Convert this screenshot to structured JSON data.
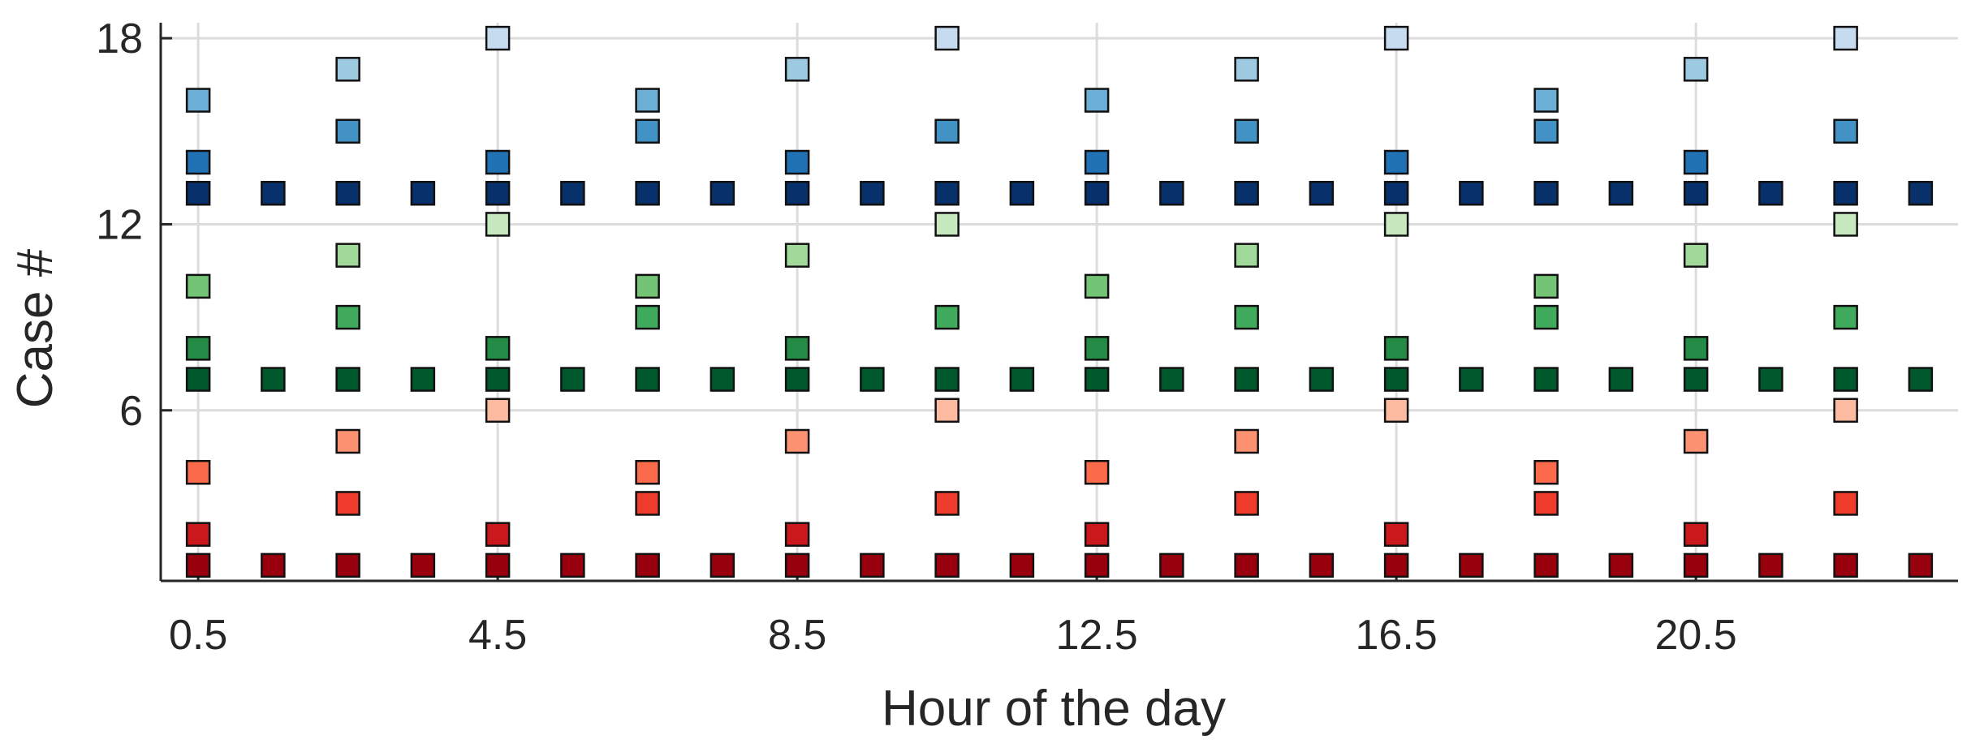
{
  "chart_data": {
    "type": "scatter",
    "title": "",
    "xlabel": "Hour of the day",
    "ylabel": "Case #",
    "xlim": [
      0,
      24
    ],
    "ylim": [
      0.5,
      18.5
    ],
    "x_ticks": [
      0.5,
      4.5,
      8.5,
      12.5,
      16.5,
      20.5
    ],
    "x_tick_labels": [
      "0.5",
      "4.5",
      "8.5",
      "12.5",
      "16.5",
      "20.5"
    ],
    "y_ticks": [
      6,
      12,
      18
    ],
    "y_tick_labels": [
      "6",
      "12",
      "18"
    ],
    "grid": true,
    "marker": "square",
    "case_colors": {
      "1": "#99000d",
      "2": "#cb181d",
      "3": "#ef3b2c",
      "4": "#fb6a4a",
      "5": "#fc9272",
      "6": "#fcbba1",
      "7": "#00592c",
      "8": "#238b45",
      "9": "#41ab5d",
      "10": "#74c476",
      "11": "#a1d99b",
      "12": "#c7e9c0",
      "13": "#08306b",
      "14": "#2171b5",
      "15": "#4292c6",
      "16": "#6baed6",
      "17": "#9ecae1",
      "18": "#c6dbef"
    },
    "series": [
      {
        "case": 1,
        "x": [
          0.5,
          1.5,
          2.5,
          3.5,
          4.5,
          5.5,
          6.5,
          7.5,
          8.5,
          9.5,
          10.5,
          11.5,
          12.5,
          13.5,
          14.5,
          15.5,
          16.5,
          17.5,
          18.5,
          19.5,
          20.5,
          21.5,
          22.5,
          23.5
        ]
      },
      {
        "case": 2,
        "x": [
          0.5,
          4.5,
          8.5,
          12.5,
          16.5,
          20.5
        ]
      },
      {
        "case": 3,
        "x": [
          2.5,
          6.5,
          10.5,
          14.5,
          18.5,
          22.5
        ]
      },
      {
        "case": 4,
        "x": [
          0.5,
          6.5,
          12.5,
          18.5
        ]
      },
      {
        "case": 5,
        "x": [
          2.5,
          8.5,
          14.5,
          20.5
        ]
      },
      {
        "case": 6,
        "x": [
          4.5,
          10.5,
          16.5,
          22.5
        ]
      },
      {
        "case": 7,
        "x": [
          0.5,
          1.5,
          2.5,
          3.5,
          4.5,
          5.5,
          6.5,
          7.5,
          8.5,
          9.5,
          10.5,
          11.5,
          12.5,
          13.5,
          14.5,
          15.5,
          16.5,
          17.5,
          18.5,
          19.5,
          20.5,
          21.5,
          22.5,
          23.5
        ]
      },
      {
        "case": 8,
        "x": [
          0.5,
          4.5,
          8.5,
          12.5,
          16.5,
          20.5
        ]
      },
      {
        "case": 9,
        "x": [
          2.5,
          6.5,
          10.5,
          14.5,
          18.5,
          22.5
        ]
      },
      {
        "case": 10,
        "x": [
          0.5,
          6.5,
          12.5,
          18.5
        ]
      },
      {
        "case": 11,
        "x": [
          2.5,
          8.5,
          14.5,
          20.5
        ]
      },
      {
        "case": 12,
        "x": [
          4.5,
          10.5,
          16.5,
          22.5
        ]
      },
      {
        "case": 13,
        "x": [
          0.5,
          1.5,
          2.5,
          3.5,
          4.5,
          5.5,
          6.5,
          7.5,
          8.5,
          9.5,
          10.5,
          11.5,
          12.5,
          13.5,
          14.5,
          15.5,
          16.5,
          17.5,
          18.5,
          19.5,
          20.5,
          21.5,
          22.5,
          23.5
        ]
      },
      {
        "case": 14,
        "x": [
          0.5,
          4.5,
          8.5,
          12.5,
          16.5,
          20.5
        ]
      },
      {
        "case": 15,
        "x": [
          2.5,
          6.5,
          10.5,
          14.5,
          18.5,
          22.5
        ]
      },
      {
        "case": 16,
        "x": [
          0.5,
          6.5,
          12.5,
          18.5
        ]
      },
      {
        "case": 17,
        "x": [
          2.5,
          8.5,
          14.5,
          20.5
        ]
      },
      {
        "case": 18,
        "x": [
          4.5,
          10.5,
          16.5,
          22.5
        ]
      }
    ]
  }
}
